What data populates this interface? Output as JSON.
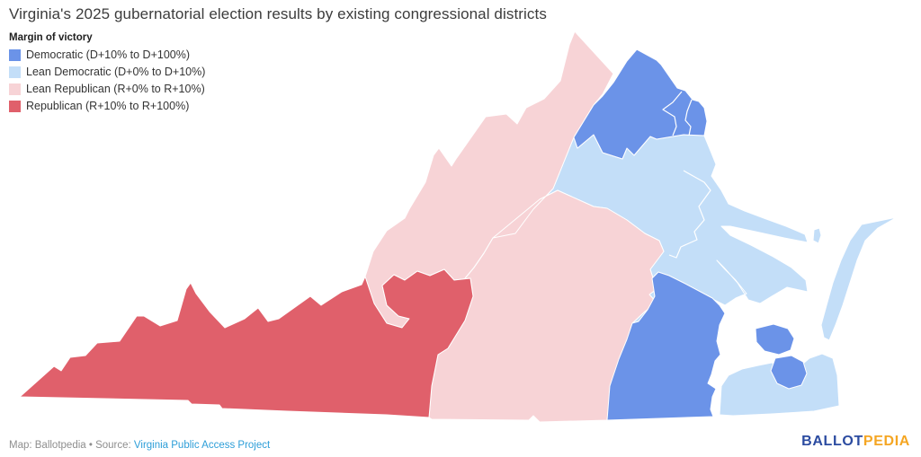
{
  "header": {
    "title": "Virginia's 2025 gubernatorial election results by existing congressional districts"
  },
  "legend": {
    "title": "Margin of victory",
    "items": [
      {
        "label": "Democratic (D+10% to D+100%)",
        "category": "democratic"
      },
      {
        "label": "Lean Democratic (D+0% to D+10%)",
        "category": "lean_democratic"
      },
      {
        "label": "Lean Republican (R+0% to R+10%)",
        "category": "lean_republican"
      },
      {
        "label": "Republican (R+10% to R+100%)",
        "category": "republican"
      }
    ]
  },
  "map": {
    "colors": {
      "democratic": "#6b93e8",
      "lean_democratic": "#c3def8",
      "lean_republican": "#f7d3d6",
      "republican": "#e0606b"
    },
    "regions": [
      {
        "id": "district-9-southwest",
        "category": "republican"
      },
      {
        "id": "districts-5-6-central",
        "category": "lean_republican"
      },
      {
        "id": "districts-7-1-mainland",
        "category": "lean_democratic"
      },
      {
        "id": "district-2-virginia-beach",
        "category": "lean_democratic"
      },
      {
        "id": "district-2-eastern-shore",
        "category": "lean_democratic"
      },
      {
        "id": "eastern-shore-island",
        "category": "lean_democratic"
      },
      {
        "id": "districts-8-10-11-northern-virginia",
        "category": "democratic"
      },
      {
        "id": "district-4-richmond-south",
        "category": "democratic"
      },
      {
        "id": "district-3-norfolk-a",
        "category": "democratic"
      },
      {
        "id": "district-3-norfolk-b",
        "category": "democratic"
      }
    ]
  },
  "footer": {
    "prefix": "Map: Ballotpedia • Source: ",
    "link_label": "Virginia Public Access Project"
  },
  "brand": {
    "part1": "BALLOT",
    "part2": "PEDIA"
  }
}
